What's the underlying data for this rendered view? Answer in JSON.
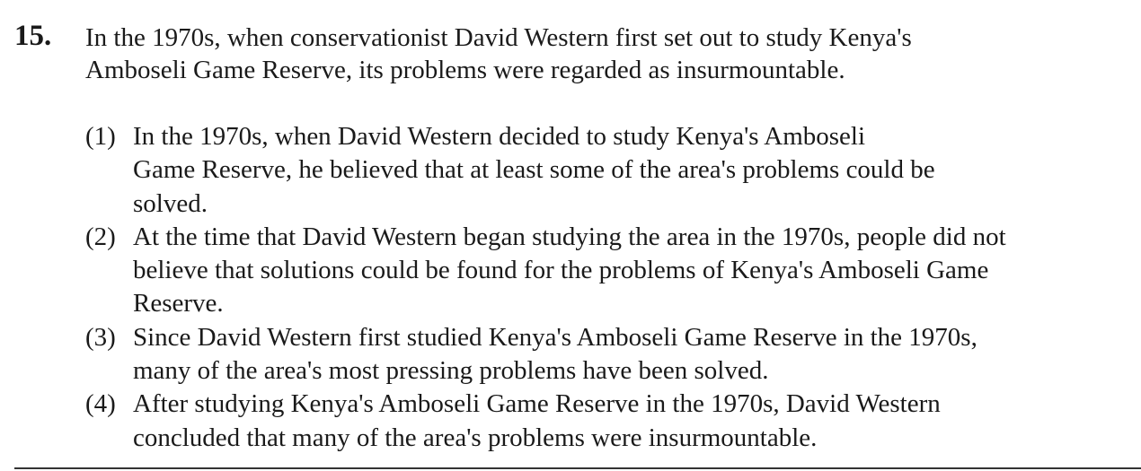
{
  "question": {
    "number": "15.",
    "stem_lines": [
      "In the 1970s, when conservationist David Western first set out to study Kenya's",
      "Amboseli Game Reserve, its problems were regarded as insurmountable."
    ],
    "options": [
      {
        "label": "(1)",
        "lines": [
          "In the 1970s, when David Western decided to study Kenya's Amboseli",
          "Game Reserve, he believed that at least some of the area's problems could be",
          "solved."
        ]
      },
      {
        "label": "(2)",
        "lines": [
          "At the time that David Western began studying the area in the 1970s, people did not",
          "believe that solutions could be found for the problems of Kenya's Amboseli Game",
          "Reserve."
        ]
      },
      {
        "label": "(3)",
        "lines": [
          "Since David Western first studied Kenya's Amboseli Game Reserve in the 1970s,",
          "many of the area's most pressing problems have been solved."
        ]
      },
      {
        "label": "(4)",
        "lines": [
          "After studying Kenya's Amboseli Game Reserve in the 1970s, David Western",
          "concluded that many of the area's problems were insurmountable."
        ]
      }
    ]
  }
}
